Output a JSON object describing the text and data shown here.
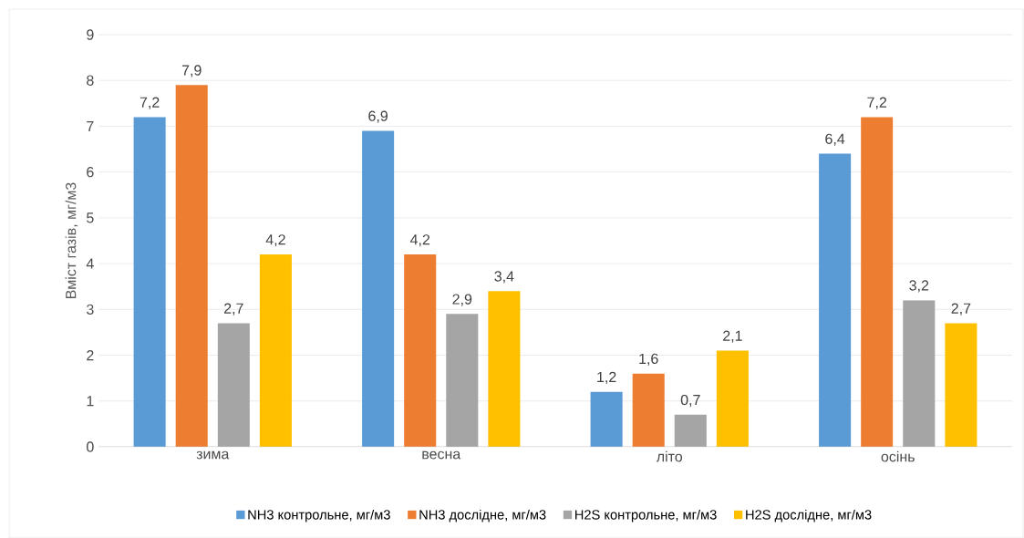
{
  "chart_data": {
    "type": "bar",
    "ylabel": "Вміст  газів, мг/м3",
    "categories": [
      "зима",
      "весна",
      "літо",
      "осінь"
    ],
    "series": [
      {
        "name": "NH3 контрольне, мг/м3",
        "color": "#5b9bd5",
        "values": [
          7.2,
          6.9,
          1.2,
          6.4
        ],
        "value_labels": [
          "7,2",
          "6,9",
          "1,2",
          "6,4"
        ]
      },
      {
        "name": "NH3 дослідне, мг/м3",
        "color": "#ed7d31",
        "values": [
          7.9,
          4.2,
          1.6,
          7.2
        ],
        "value_labels": [
          "7,9",
          "4,2",
          "1,6",
          "7,2"
        ]
      },
      {
        "name": "H2S контрольне, мг/м3",
        "color": "#a5a5a5",
        "values": [
          2.7,
          2.9,
          0.7,
          3.2
        ],
        "value_labels": [
          "2,7",
          "2,9",
          "0,7",
          "3,2"
        ]
      },
      {
        "name": "H2S дослідне, мг/м3",
        "color": "#ffc000",
        "values": [
          4.2,
          3.4,
          2.1,
          2.7
        ],
        "value_labels": [
          "4,2",
          "3,4",
          "2,1",
          "2,7"
        ]
      }
    ],
    "ylim": [
      0,
      9
    ],
    "yticks": [
      0,
      1,
      2,
      3,
      4,
      5,
      6,
      7,
      8,
      9
    ],
    "grid": "y",
    "legend": "bottom"
  }
}
